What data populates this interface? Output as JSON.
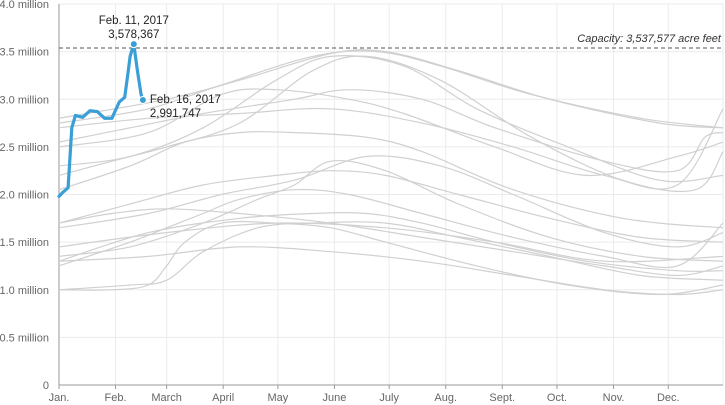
{
  "chart_data": {
    "type": "line",
    "title": "",
    "xlabel": "",
    "ylabel": "",
    "x_unit": "day of year",
    "xlim": [
      1,
      365
    ],
    "ylim": [
      0,
      4000000
    ],
    "grid": true,
    "y_ticks": [
      {
        "value": 0,
        "label": "0"
      },
      {
        "value": 500000,
        "label": "0.5 million"
      },
      {
        "value": 1000000,
        "label": "1.0 million"
      },
      {
        "value": 1500000,
        "label": "1.5 million"
      },
      {
        "value": 2000000,
        "label": "2.0 million"
      },
      {
        "value": 2500000,
        "label": "2.5 million"
      },
      {
        "value": 3000000,
        "label": "3.0 million"
      },
      {
        "value": 3500000,
        "label": "3.5 million"
      },
      {
        "value": 4000000,
        "label": "4.0 million"
      }
    ],
    "x_ticks": [
      {
        "value": 1,
        "label": "Jan."
      },
      {
        "value": 32,
        "label": "Feb."
      },
      {
        "value": 60,
        "label": "March"
      },
      {
        "value": 91,
        "label": "April"
      },
      {
        "value": 121,
        "label": "May"
      },
      {
        "value": 152,
        "label": "June"
      },
      {
        "value": 182,
        "label": "July"
      },
      {
        "value": 213,
        "label": "Aug."
      },
      {
        "value": 244,
        "label": "Sept."
      },
      {
        "value": 274,
        "label": "Oct."
      },
      {
        "value": 305,
        "label": "Nov."
      },
      {
        "value": 335,
        "label": "Dec."
      }
    ],
    "capacity": {
      "value": 3537577,
      "label": "Capacity: 3,537,577 acre feet"
    },
    "annotations": [
      {
        "date": "Feb. 11, 2017",
        "value_text": "3,578,367",
        "x": 42,
        "y": 3578367
      },
      {
        "date": "Feb. 16, 2017",
        "value_text": "2,991,747",
        "x": 47,
        "y": 2991747
      }
    ],
    "colors": {
      "highlight": "#3a9fd6",
      "history": "#d0d0d0",
      "grid": "#ebebeb",
      "axis": "#999999"
    },
    "highlight_series": {
      "x": [
        1,
        3,
        6,
        8,
        10,
        14,
        18,
        22,
        26,
        30,
        34,
        37,
        39,
        40,
        42,
        44,
        46,
        47
      ],
      "y": [
        1980000,
        2020000,
        2070000,
        2700000,
        2830000,
        2810000,
        2880000,
        2870000,
        2800000,
        2800000,
        2970000,
        3020000,
        3300000,
        3450000,
        3578367,
        3300000,
        3050000,
        2991747
      ]
    },
    "history_series": [
      {
        "x": [
          1,
          60,
          100,
          150,
          180,
          220,
          270,
          330,
          365
        ],
        "y": [
          2800000,
          3000000,
          3200000,
          3480000,
          3500000,
          3300000,
          3000000,
          2750000,
          2700000
        ]
      },
      {
        "x": [
          1,
          50,
          90,
          140,
          175,
          210,
          260,
          320,
          365
        ],
        "y": [
          2750000,
          2900000,
          3150000,
          3450000,
          3500000,
          3350000,
          3050000,
          2800000,
          2700000
        ]
      },
      {
        "x": [
          1,
          40,
          80,
          130,
          160,
          200,
          240,
          300,
          340,
          355,
          365
        ],
        "y": [
          2550000,
          2700000,
          2850000,
          3000000,
          3100000,
          3000000,
          2700000,
          2350000,
          2250000,
          2600000,
          2650000
        ]
      },
      {
        "x": [
          1,
          50,
          100,
          150,
          200,
          250,
          300,
          340,
          365
        ],
        "y": [
          2700000,
          2800000,
          2850000,
          2900000,
          2750000,
          2500000,
          2200000,
          2100000,
          2900000
        ]
      },
      {
        "x": [
          1,
          50,
          90,
          120,
          160,
          190,
          240,
          290,
          340,
          365
        ],
        "y": [
          2500000,
          2650000,
          3050000,
          3100000,
          3000000,
          2850000,
          2500000,
          2200000,
          2400000,
          2550000
        ]
      },
      {
        "x": [
          1,
          40,
          80,
          120,
          150,
          190,
          230,
          280,
          330,
          365
        ],
        "y": [
          2300000,
          2400000,
          2700000,
          3200000,
          3450000,
          3350000,
          2900000,
          2500000,
          2150000,
          2200000
        ]
      },
      {
        "x": [
          1,
          30,
          60,
          100,
          140,
          170,
          210,
          260,
          310,
          350,
          365
        ],
        "y": [
          2200000,
          2350000,
          2500000,
          2750000,
          3300000,
          3450000,
          3200000,
          2600000,
          2150000,
          2050000,
          2450000
        ]
      },
      {
        "x": [
          1,
          40,
          70,
          100,
          130,
          170,
          200,
          250,
          310,
          365
        ],
        "y": [
          2050000,
          2300000,
          2550000,
          2650000,
          2650000,
          2600000,
          2450000,
          2050000,
          1750000,
          1650000
        ]
      },
      {
        "x": [
          1,
          40,
          80,
          120,
          150,
          180,
          220,
          270,
          320,
          365
        ],
        "y": [
          1700000,
          1900000,
          2100000,
          2200000,
          2250000,
          2200000,
          2000000,
          1750000,
          1550000,
          1500000
        ]
      },
      {
        "x": [
          1,
          50,
          90,
          130,
          170,
          210,
          250,
          300,
          340,
          365
        ],
        "y": [
          1650000,
          1800000,
          2000000,
          2150000,
          2400000,
          2300000,
          2000000,
          1600000,
          1450000,
          1600000
        ]
      },
      {
        "x": [
          1,
          40,
          80,
          110,
          130,
          150,
          180,
          220,
          270,
          320,
          365
        ],
        "y": [
          1350000,
          1450000,
          1700000,
          1950000,
          2100000,
          2350000,
          2250000,
          1900000,
          1550000,
          1350000,
          1300000
        ]
      },
      {
        "x": [
          1,
          50,
          100,
          140,
          170,
          200,
          240,
          290,
          340,
          365
        ],
        "y": [
          1300000,
          1600000,
          1750000,
          1800000,
          1800000,
          1700000,
          1500000,
          1300000,
          1200000,
          1200000
        ]
      },
      {
        "x": [
          1,
          40,
          60,
          80,
          100,
          130,
          160,
          200,
          250,
          300,
          340,
          365
        ],
        "y": [
          1250000,
          1500000,
          1650000,
          1800000,
          1950000,
          2050000,
          2000000,
          1800000,
          1550000,
          1350000,
          1250000,
          1700000
        ]
      },
      {
        "x": [
          1,
          40,
          60,
          80,
          110,
          140,
          180,
          220,
          270,
          320,
          365
        ],
        "y": [
          1000000,
          1050000,
          1100000,
          1400000,
          1650000,
          1700000,
          1700000,
          1550000,
          1350000,
          1150000,
          1100000
        ]
      },
      {
        "x": [
          1,
          30,
          50,
          60,
          70,
          90,
          120,
          150,
          180,
          230,
          280,
          330,
          365
        ],
        "y": [
          1000000,
          1000000,
          1050000,
          1250000,
          1500000,
          1700000,
          1700000,
          1650000,
          1500000,
          1250000,
          1050000,
          950000,
          1050000
        ]
      },
      {
        "x": [
          1,
          50,
          100,
          150,
          200,
          250,
          300,
          340,
          365
        ],
        "y": [
          1300000,
          1350000,
          1450000,
          1400000,
          1300000,
          1150000,
          1000000,
          950000,
          1000000
        ]
      },
      {
        "x": [
          1,
          30,
          60,
          100,
          150,
          200,
          250,
          300,
          340,
          365
        ],
        "y": [
          1700000,
          1800000,
          1850000,
          1800000,
          1700000,
          1550000,
          1400000,
          1250000,
          1150000,
          1250000
        ]
      },
      {
        "x": [
          1,
          60,
          120,
          180,
          240,
          300,
          365
        ],
        "y": [
          1450000,
          1600000,
          1700000,
          1650000,
          1500000,
          1300000,
          1350000
        ]
      }
    ]
  }
}
